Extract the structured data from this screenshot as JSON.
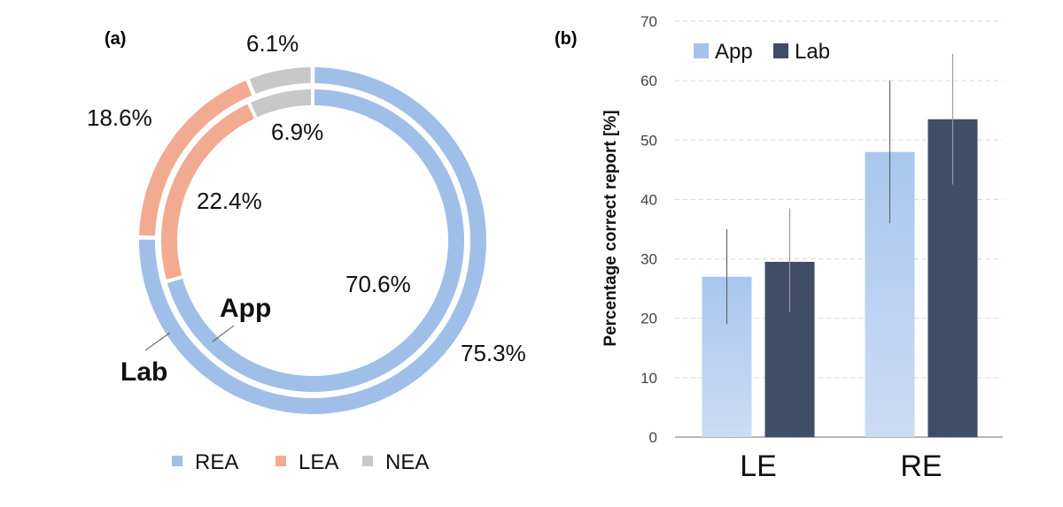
{
  "panel_a_label": "(a)",
  "panel_b_label": "(b)",
  "chart_data": [
    {
      "type": "pie",
      "variant": "nested-donut",
      "categories": [
        "REA",
        "LEA",
        "NEA"
      ],
      "colors": {
        "REA": "#9fbfe8",
        "LEA": "#f2aa90",
        "NEA": "#c8c8c8"
      },
      "series": [
        {
          "name": "Lab",
          "values": [
            75.3,
            18.6,
            6.1
          ],
          "labels": [
            "75.3%",
            "18.6%",
            "6.1%"
          ]
        },
        {
          "name": "App",
          "values": [
            70.6,
            22.4,
            6.9
          ],
          "labels": [
            "70.6%",
            "22.4%",
            "6.9%"
          ]
        }
      ],
      "legend": {
        "entries": [
          "REA",
          "LEA",
          "NEA"
        ],
        "placement": "bottom"
      }
    },
    {
      "type": "bar",
      "categories": [
        "LE",
        "RE"
      ],
      "series": [
        {
          "name": "App",
          "values": [
            27,
            48
          ],
          "error_low": [
            19,
            36
          ],
          "error_high": [
            35,
            60
          ],
          "color": "#a3c3ea"
        },
        {
          "name": "Lab",
          "values": [
            29.5,
            53.5
          ],
          "error_low": [
            21,
            42.5
          ],
          "error_high": [
            38.5,
            64.5
          ],
          "color": "#3f4d66"
        }
      ],
      "ylabel": "Percentage correct report [%]",
      "ylim": [
        0,
        70
      ],
      "yticks": [
        0,
        10,
        20,
        30,
        40,
        50,
        60,
        70
      ],
      "grid": true,
      "legend": {
        "entries": [
          "App",
          "Lab"
        ],
        "placement": "top-left"
      }
    }
  ]
}
